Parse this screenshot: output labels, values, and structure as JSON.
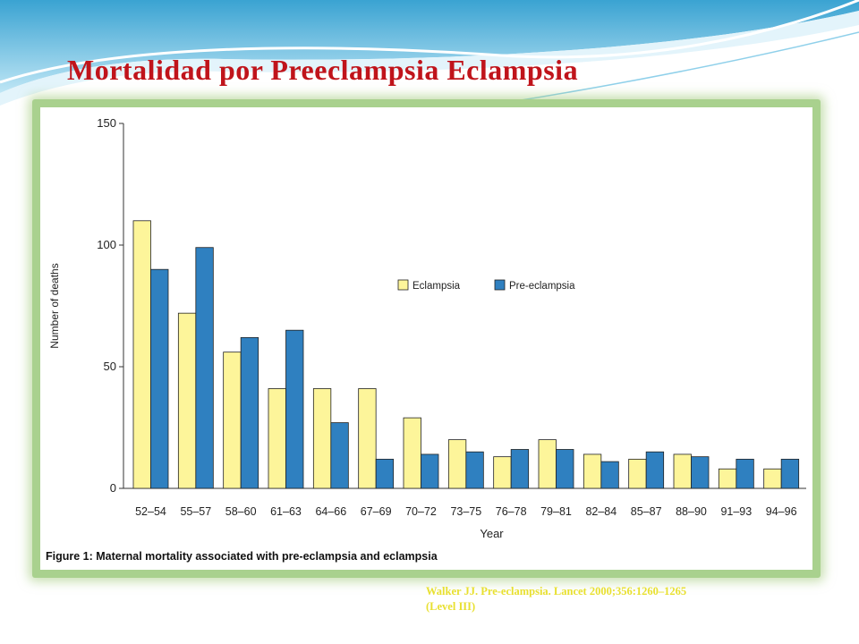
{
  "slide": {
    "title": "Mortalidad por Preeclampsia Eclampsia",
    "citation_line1": "Walker JJ. Pre-eclampsia. Lancet 2000;356:1260–1265",
    "citation_line2": "(Level III)"
  },
  "colors": {
    "title": "#c0141b",
    "frame": "#a9d18e",
    "eclampsia": "#fdf59a",
    "pre_eclampsia": "#2f80c0",
    "citation": "#e8e030",
    "swoosh": "#5ab5d9"
  },
  "chart_data": {
    "type": "bar",
    "caption_prefix": "Figure 1:",
    "caption": "Maternal mortality associated with pre-eclampsia and eclampsia",
    "xlabel": "Year",
    "ylabel": "Number of deaths",
    "ylim": [
      0,
      150
    ],
    "yticks": [
      0,
      50,
      100,
      150
    ],
    "legend_position": "center-right",
    "grid": false,
    "categories": [
      "52–54",
      "55–57",
      "58–60",
      "61–63",
      "64–66",
      "67–69",
      "70–72",
      "73–75",
      "76–78",
      "79–81",
      "82–84",
      "85–87",
      "88–90",
      "91–93",
      "94–96"
    ],
    "series": [
      {
        "name": "Eclampsia",
        "values": [
          110,
          72,
          56,
          41,
          41,
          41,
          29,
          20,
          13,
          20,
          14,
          12,
          14,
          8,
          8
        ]
      },
      {
        "name": "Pre-eclampsia",
        "values": [
          90,
          99,
          62,
          65,
          27,
          12,
          14,
          15,
          16,
          16,
          11,
          15,
          13,
          12,
          12
        ]
      }
    ]
  }
}
